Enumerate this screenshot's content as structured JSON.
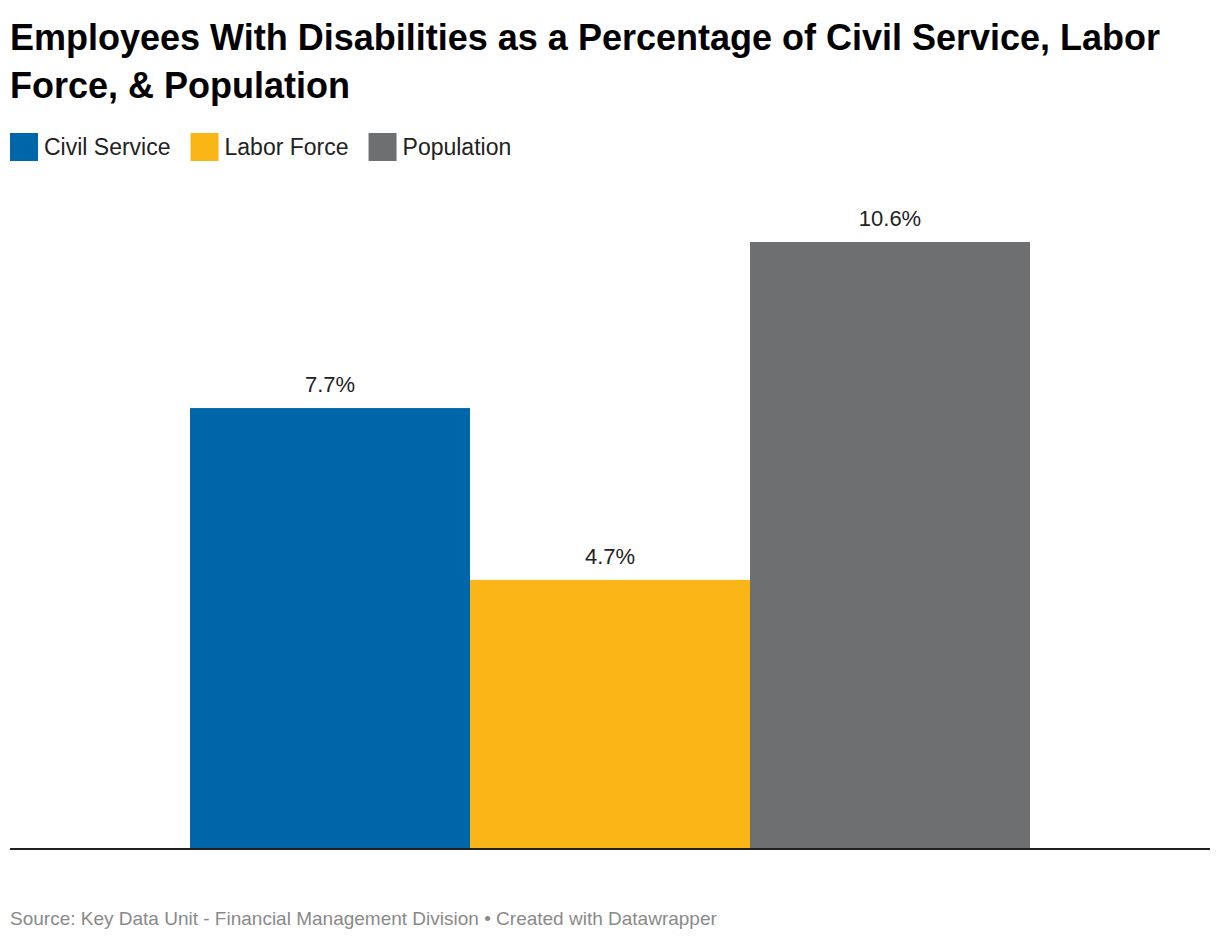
{
  "chart_data": {
    "type": "bar",
    "title": "Employees With Disabilities as a Percentage of Civil Service, Labor Force, & Population",
    "source": "Source: Key Data Unit - Financial Management Division • Created with Datawrapper",
    "categories": [
      "Civil Service",
      "Labor Force",
      "Population"
    ],
    "values": [
      7.7,
      4.7,
      10.6
    ],
    "value_labels": [
      "7.7%",
      "4.7%",
      "10.6%"
    ],
    "colors": [
      "#0066aa",
      "#f9b616",
      "#6e6f71"
    ],
    "ylim": [
      0,
      10.6
    ],
    "yticks": [
      0
    ],
    "grid": false,
    "legend": "top-left",
    "data_labels": true,
    "tick_labels": false
  }
}
